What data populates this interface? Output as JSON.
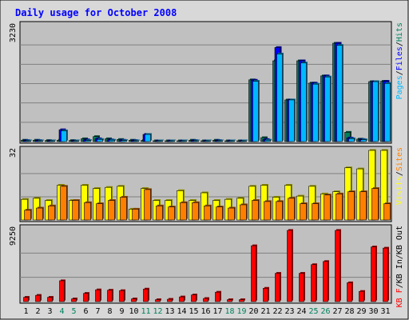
{
  "chart_data": {
    "type": "bar",
    "title": "Daily usage for October 2008",
    "categories": [
      "1",
      "2",
      "3",
      "4",
      "5",
      "6",
      "7",
      "8",
      "9",
      "10",
      "11",
      "12",
      "13",
      "14",
      "15",
      "16",
      "17",
      "18",
      "19",
      "20",
      "21",
      "22",
      "23",
      "24",
      "25",
      "26",
      "27",
      "28",
      "29",
      "30",
      "31"
    ],
    "weekend_categories": [
      "4",
      "5",
      "11",
      "12",
      "18",
      "19",
      "25",
      "26"
    ],
    "panels": [
      {
        "name": "hits",
        "ymax_label": "3230",
        "ymax": 3230,
        "legend": [
          "Pages",
          "/",
          "Files",
          "/",
          "Hits"
        ],
        "series": [
          {
            "name": "Hits",
            "color": "#00805c",
            "values": [
              40,
              40,
              30,
              40,
              30,
              80,
              140,
              80,
              60,
              40,
              30,
              10,
              10,
              20,
              40,
              20,
              40,
              10,
              10,
              1720,
              110,
              2250,
              1160,
              2250,
              1630,
              1830,
              2740,
              260,
              70,
              1670,
              1680
            ]
          },
          {
            "name": "Files",
            "color": "#0000ff",
            "values": [
              30,
              30,
              20,
              330,
              20,
              50,
              80,
              50,
              40,
              30,
              200,
              10,
              10,
              20,
              30,
              20,
              30,
              10,
              10,
              1710,
              60,
              2620,
              1160,
              2250,
              1630,
              1830,
              2740,
              100,
              60,
              1670,
              1680
            ]
          },
          {
            "name": "Pages",
            "color": "#00b8ff",
            "values": [
              20,
              20,
              10,
              300,
              20,
              30,
              60,
              40,
              30,
              20,
              200,
              10,
              10,
              20,
              20,
              10,
              20,
              10,
              10,
              1680,
              40,
              2440,
              1160,
              2190,
              1600,
              1800,
              2680,
              80,
              50,
              1670,
              1620
            ]
          }
        ]
      },
      {
        "name": "visits",
        "ymax_label": "32",
        "ymax": 32,
        "legend": [
          "Visits",
          "/",
          "Sites"
        ],
        "series": [
          {
            "name": "Visits",
            "color": "#ffff00",
            "values": [
              9.5,
              10,
              9,
              16,
              9,
              16,
              14.5,
              15,
              15.5,
              5,
              14.5,
              9,
              9,
              13.5,
              9,
              12.5,
              9,
              9.5,
              10,
              15.5,
              16,
              10.5,
              16,
              11,
              15.5,
              12,
              13,
              24,
              23.5,
              32,
              32
            ]
          },
          {
            "name": "Sites",
            "color": "#ff8000",
            "values": [
              4.5,
              5.5,
              6.5,
              15.5,
              9,
              8,
              7.5,
              9,
              10.5,
              5,
              14,
              6.5,
              6,
              8,
              8,
              6.5,
              6,
              5.5,
              7,
              9,
              8.5,
              8.5,
              10,
              7.5,
              7.5,
              11.5,
              12,
              13,
              13,
              14.5,
              7.5
            ]
          }
        ]
      },
      {
        "name": "kbytes",
        "ymax_label": "9250",
        "ymax": 9250,
        "legend": [
          "KB F",
          "/",
          "KB In",
          "/",
          "KB Out"
        ],
        "series": [
          {
            "name": "KB F",
            "color": "#ff0000",
            "values": [
              550,
              800,
              550,
              2650,
              350,
              1050,
              1500,
              1450,
              1400,
              350,
              1600,
              250,
              300,
              600,
              850,
              400,
              1200,
              250,
              250,
              7100,
              1700,
              3600,
              9050,
              3600,
              4700,
              5100,
              9050,
              2400,
              1300,
              6950,
              6800
            ]
          }
        ]
      }
    ]
  },
  "colors": {
    "page_bg": "#d8d8d8",
    "plot_bg": "#c0c0c0",
    "title": "#0000ff",
    "weekend_label": "#00805c",
    "weekday_label": "#000000",
    "slash": "#000000"
  }
}
